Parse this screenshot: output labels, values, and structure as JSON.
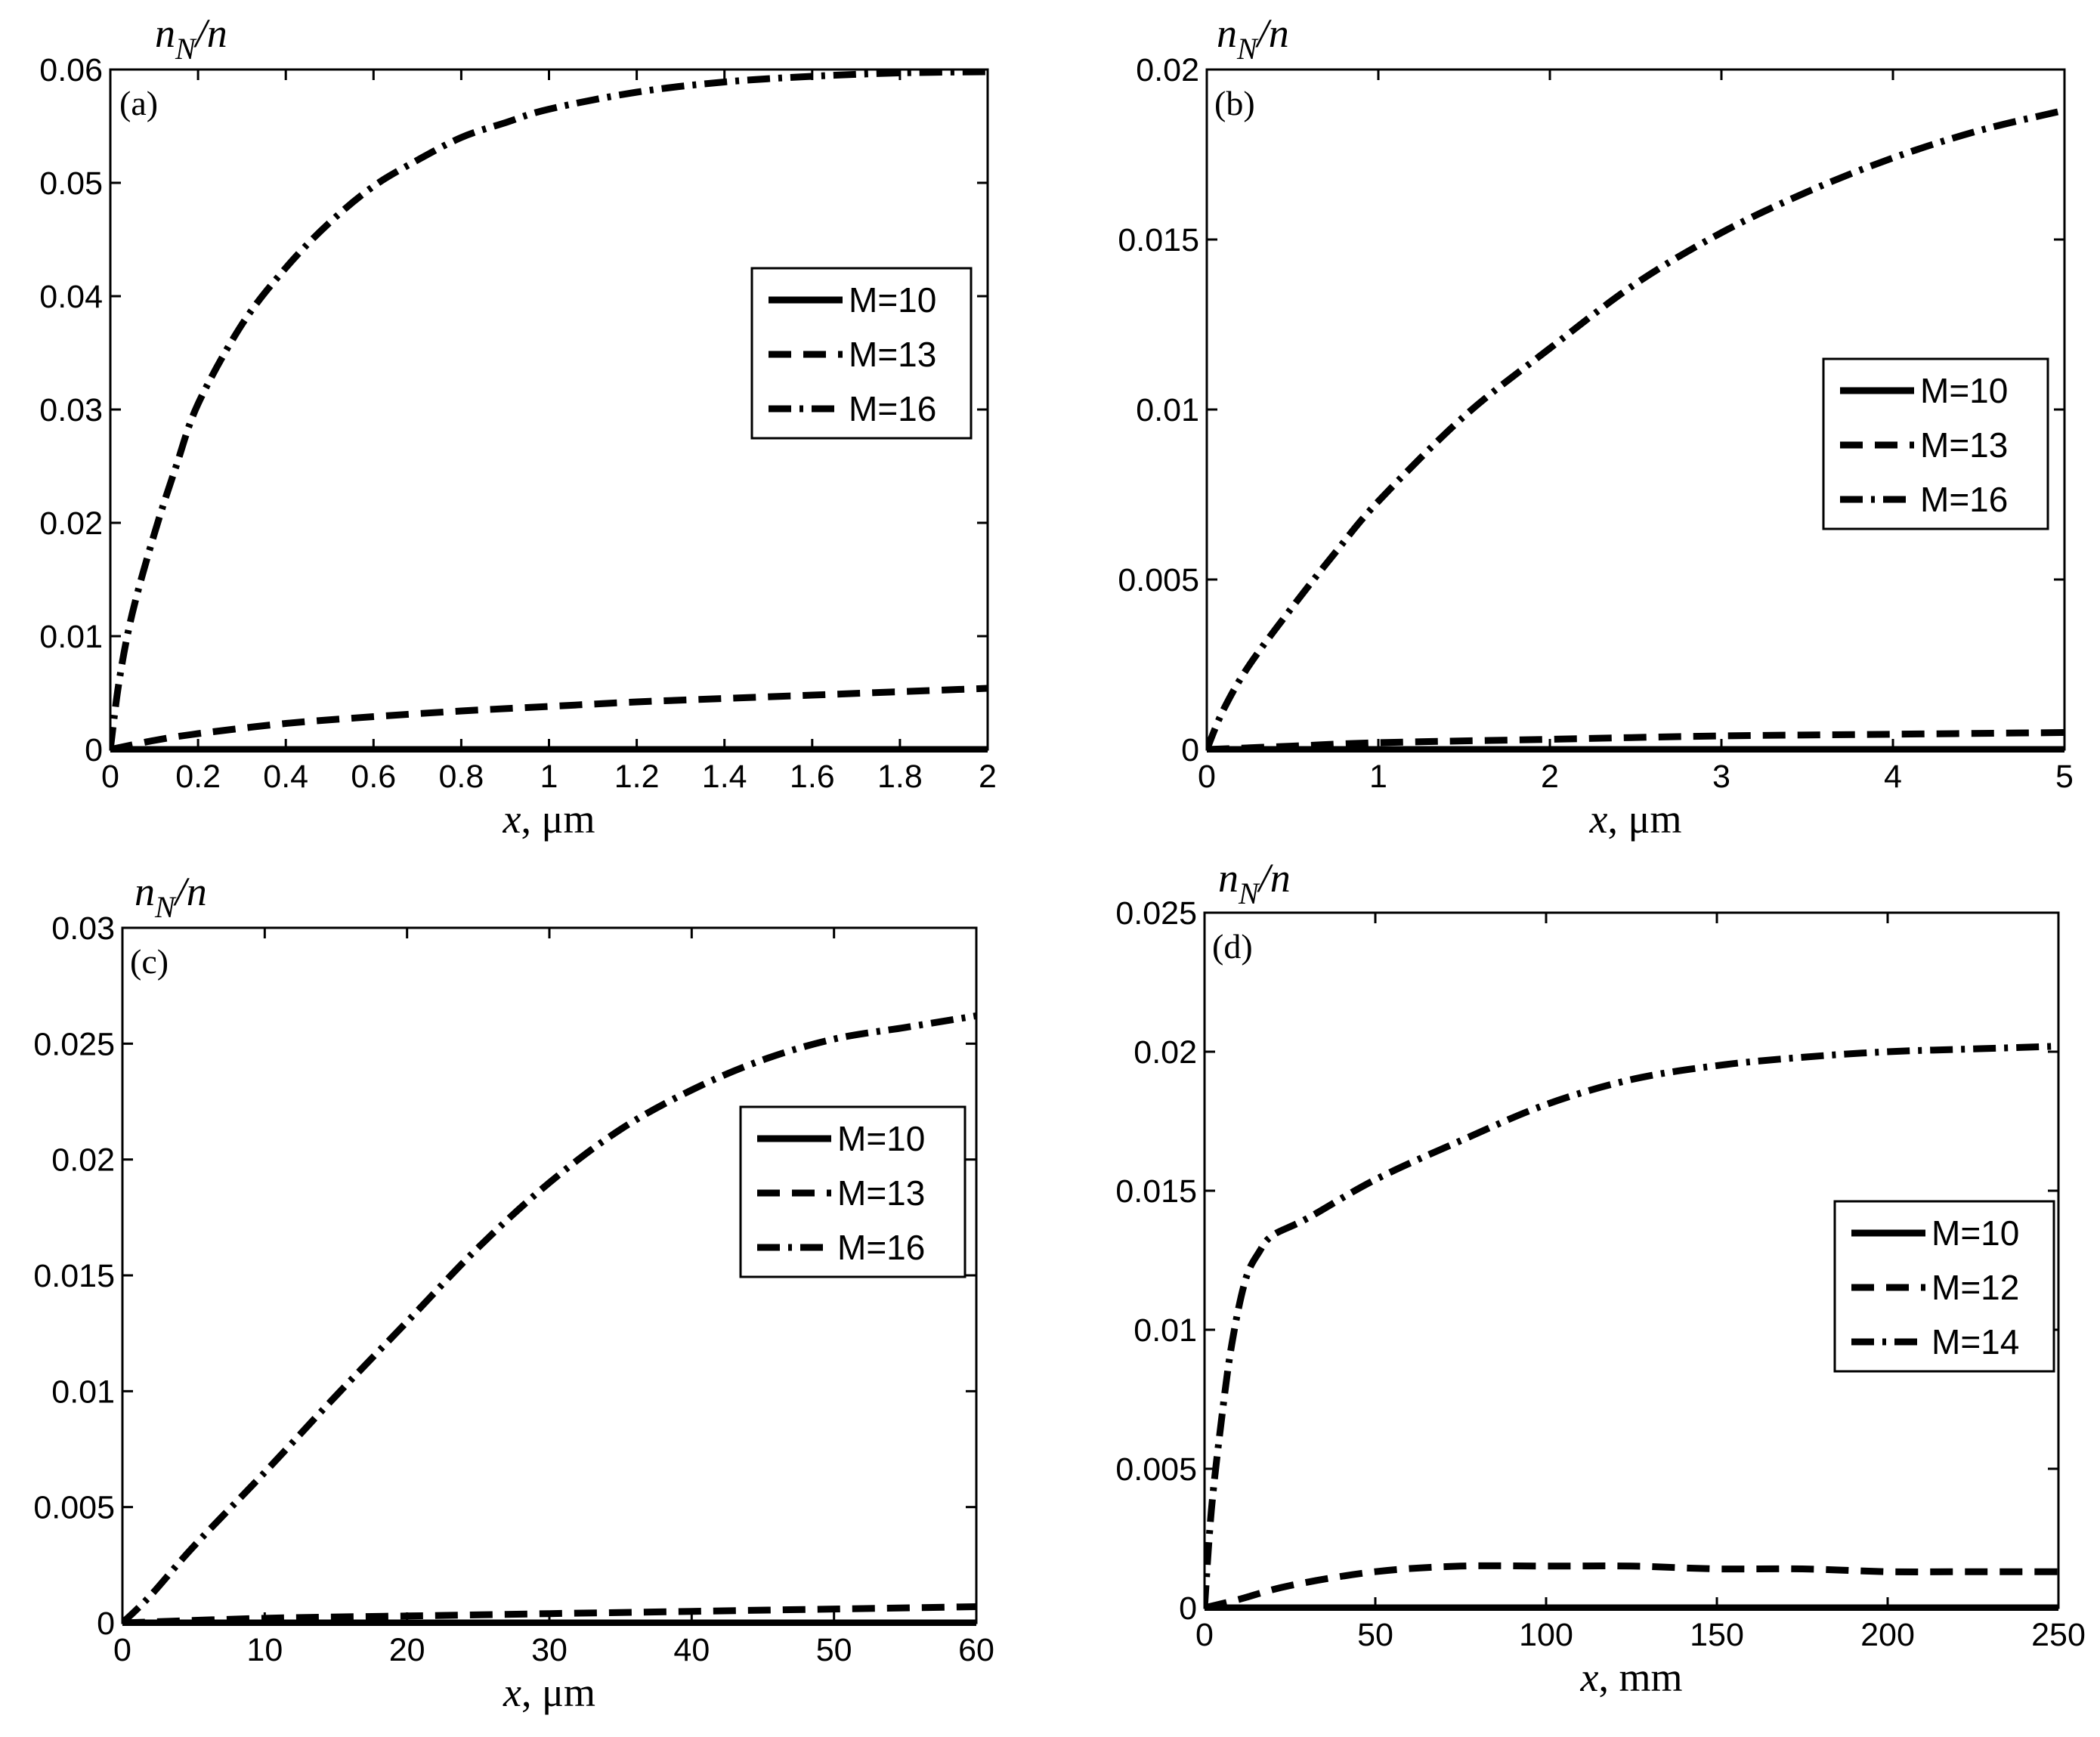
{
  "chart_data": [
    {
      "type": "line",
      "panel": "(a)",
      "ylabel": "n_N/n",
      "xlabel": "x, μm",
      "xlim": [
        0,
        2
      ],
      "ylim": [
        0,
        0.06
      ],
      "xticks": [
        0,
        0.2,
        0.4,
        0.6,
        0.8,
        1,
        1.2,
        1.4,
        1.6,
        1.8,
        2
      ],
      "xtick_labels": [
        "0",
        "0.2",
        "0.4",
        "0.6",
        "0.8",
        "1",
        "1.2",
        "1.4",
        "1.6",
        "1.8",
        "2"
      ],
      "yticks": [
        0,
        0.01,
        0.02,
        0.03,
        0.04,
        0.05,
        0.06
      ],
      "ytick_labels": [
        "0",
        "0.01",
        "0.02",
        "0.03",
        "0.04",
        "0.05",
        "0.06"
      ],
      "legend_position": "middle-right",
      "series": [
        {
          "name": "M=10",
          "style": "solid",
          "x": [
            0,
            0.5,
            1,
            1.5,
            2
          ],
          "y": [
            0,
            0,
            0,
            0,
            0
          ]
        },
        {
          "name": "M=13",
          "style": "dashed",
          "x": [
            0,
            0.1,
            0.2,
            0.4,
            0.6,
            0.8,
            1,
            1.2,
            1.4,
            1.6,
            1.8,
            2
          ],
          "y": [
            0,
            0.0008,
            0.0014,
            0.0023,
            0.0029,
            0.0034,
            0.0038,
            0.0042,
            0.0045,
            0.0048,
            0.0051,
            0.0054
          ]
        },
        {
          "name": "M=16",
          "style": "dashdot",
          "x": [
            0,
            0.02,
            0.05,
            0.1,
            0.15,
            0.2,
            0.3,
            0.4,
            0.5,
            0.6,
            0.7,
            0.8,
            0.9,
            1,
            1.2,
            1.4,
            1.6,
            1.8,
            2
          ],
          "y": [
            0,
            0.006,
            0.012,
            0.019,
            0.025,
            0.0305,
            0.0375,
            0.0425,
            0.0465,
            0.0497,
            0.052,
            0.054,
            0.0553,
            0.0565,
            0.058,
            0.0589,
            0.0594,
            0.0597,
            0.0598
          ]
        }
      ]
    },
    {
      "type": "line",
      "panel": "(b)",
      "ylabel": "n_N/n",
      "xlabel": "x, μm",
      "xlim": [
        0,
        5
      ],
      "ylim": [
        0,
        0.02
      ],
      "xticks": [
        0,
        1,
        2,
        3,
        4,
        5
      ],
      "xtick_labels": [
        "0",
        "1",
        "2",
        "3",
        "4",
        "5"
      ],
      "yticks": [
        0,
        0.005,
        0.01,
        0.015,
        0.02
      ],
      "ytick_labels": [
        "0",
        "0.005",
        "0.01",
        "0.015",
        "0.02"
      ],
      "legend_position": "middle-right",
      "series": [
        {
          "name": "M=10",
          "style": "solid",
          "x": [
            0,
            1,
            2,
            3,
            4,
            5
          ],
          "y": [
            0,
            0,
            0,
            0,
            0,
            0
          ]
        },
        {
          "name": "M=13",
          "style": "dashed",
          "x": [
            0,
            0.5,
            1,
            2,
            3,
            4,
            5
          ],
          "y": [
            0,
            0.0001,
            0.0002,
            0.0003,
            0.0004,
            0.00045,
            0.0005
          ]
        },
        {
          "name": "M=16",
          "style": "dashdot",
          "x": [
            0,
            0.1,
            0.25,
            0.5,
            0.75,
            1,
            1.5,
            2,
            2.5,
            3,
            3.5,
            4,
            4.5,
            5
          ],
          "y": [
            0,
            0.0012,
            0.0025,
            0.0042,
            0.0058,
            0.0073,
            0.0098,
            0.0118,
            0.0137,
            0.0152,
            0.0164,
            0.0174,
            0.0182,
            0.0188
          ]
        }
      ]
    },
    {
      "type": "line",
      "panel": "(c)",
      "ylabel": "n_N/n",
      "xlabel": "x, μm",
      "xlim": [
        0,
        60
      ],
      "ylim": [
        0,
        0.03
      ],
      "xticks": [
        0,
        10,
        20,
        30,
        40,
        50,
        60
      ],
      "xtick_labels": [
        "0",
        "10",
        "20",
        "30",
        "40",
        "50",
        "60"
      ],
      "yticks": [
        0,
        0.005,
        0.01,
        0.015,
        0.02,
        0.025,
        0.03
      ],
      "ytick_labels": [
        "0",
        "0.005",
        "0.01",
        "0.015",
        "0.02",
        "0.025",
        "0.03"
      ],
      "legend_position": "middle-right",
      "series": [
        {
          "name": "M=10",
          "style": "solid",
          "x": [
            0,
            20,
            40,
            60
          ],
          "y": [
            0,
            0,
            0,
            0
          ]
        },
        {
          "name": "M=13",
          "style": "dashed",
          "x": [
            0,
            10,
            20,
            30,
            40,
            50,
            60
          ],
          "y": [
            0,
            0.0002,
            0.0003,
            0.0004,
            0.0005,
            0.0006,
            0.0007
          ]
        },
        {
          "name": "M=16",
          "style": "dashdot",
          "x": [
            0,
            2,
            5,
            10,
            15,
            20,
            25,
            30,
            35,
            40,
            45,
            50,
            55,
            60
          ],
          "y": [
            0,
            0.0012,
            0.0033,
            0.0065,
            0.0098,
            0.013,
            0.0162,
            0.019,
            0.0213,
            0.023,
            0.0243,
            0.0252,
            0.0257,
            0.0262
          ]
        }
      ]
    },
    {
      "type": "line",
      "panel": "(d)",
      "ylabel": "n_N/n",
      "xlabel": "x, mm",
      "xlim": [
        0,
        250
      ],
      "ylim": [
        0,
        0.025
      ],
      "xticks": [
        0,
        50,
        100,
        150,
        200,
        250
      ],
      "xtick_labels": [
        "0",
        "50",
        "100",
        "150",
        "200",
        "250"
      ],
      "yticks": [
        0,
        0.005,
        0.01,
        0.015,
        0.02,
        0.025
      ],
      "ytick_labels": [
        "0",
        "0.005",
        "0.01",
        "0.015",
        "0.02",
        "0.025"
      ],
      "legend_position": "middle-right",
      "series": [
        {
          "name": "M=10",
          "style": "solid",
          "x": [
            0,
            100,
            200,
            250
          ],
          "y": [
            0,
            0,
            0,
            0
          ]
        },
        {
          "name": "M=12",
          "style": "dashed",
          "x": [
            0,
            10,
            25,
            50,
            75,
            100,
            125,
            150,
            175,
            200,
            225,
            250
          ],
          "y": [
            0,
            0.0003,
            0.0008,
            0.0013,
            0.0015,
            0.0015,
            0.0015,
            0.0014,
            0.0014,
            0.0013,
            0.0013,
            0.0013
          ]
        },
        {
          "name": "M=14",
          "style": "dashdot",
          "x": [
            0,
            2,
            5,
            8,
            12,
            16,
            20,
            30,
            50,
            75,
            100,
            125,
            150,
            175,
            200,
            225,
            250
          ],
          "y": [
            0,
            0.0035,
            0.0068,
            0.0095,
            0.0118,
            0.0128,
            0.0134,
            0.014,
            0.0154,
            0.0168,
            0.0181,
            0.019,
            0.0195,
            0.0198,
            0.02,
            0.0201,
            0.0202
          ]
        }
      ]
    }
  ]
}
